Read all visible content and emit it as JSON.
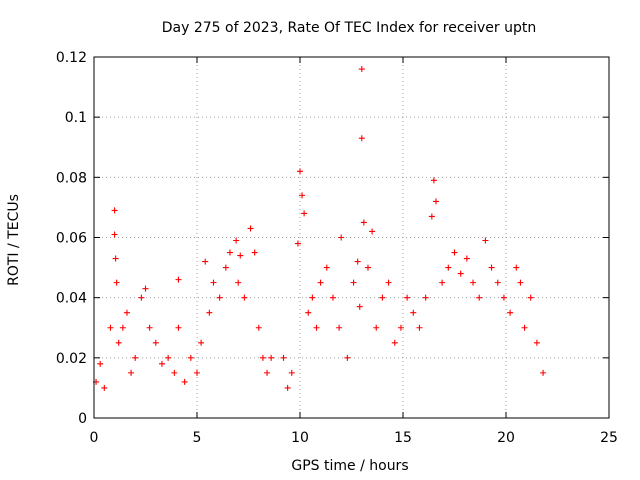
{
  "chart_data": {
    "type": "scatter",
    "title": "Day 275 of 2023, Rate Of TEC Index for receiver uptn",
    "xlabel": "GPS time / hours",
    "ylabel": "ROTI / TECUs",
    "xlim": [
      0,
      25
    ],
    "ylim": [
      0,
      0.12
    ],
    "xticks": [
      0,
      5,
      10,
      15,
      20,
      25
    ],
    "yticks": [
      0,
      0.02,
      0.04,
      0.06,
      0.08,
      0.1,
      0.12
    ],
    "xtick_labels": [
      "0",
      "5",
      "10",
      "15",
      "20",
      "25"
    ],
    "ytick_labels": [
      "0",
      "0.02",
      "0.04",
      "0.06",
      "0.08",
      "0.1",
      "0.12"
    ],
    "grid": true,
    "marker": "plus",
    "series": [
      {
        "color": "#ff0000",
        "x": [
          0.1,
          0.3,
          0.5,
          0.8,
          1.0,
          1.0,
          1.05,
          1.1,
          1.2,
          1.4,
          1.6,
          1.8,
          2.0,
          2.3,
          2.5,
          2.7,
          3.0,
          3.3,
          3.6,
          3.9,
          4.1,
          4.1,
          4.4,
          4.7,
          5.0,
          5.2,
          5.4,
          5.6,
          5.8,
          6.1,
          6.4,
          6.6,
          6.9,
          7.0,
          7.1,
          7.3,
          7.6,
          7.8,
          8.0,
          8.2,
          8.4,
          8.6,
          9.2,
          9.4,
          9.6,
          9.9,
          10.0,
          10.1,
          10.2,
          10.4,
          10.6,
          10.8,
          11.0,
          11.3,
          11.6,
          11.9,
          12.0,
          12.3,
          12.6,
          12.8,
          12.9,
          13.0,
          13.0,
          13.1,
          13.3,
          13.5,
          13.7,
          14.0,
          14.3,
          14.6,
          14.9,
          15.2,
          15.5,
          15.8,
          16.1,
          16.4,
          16.5,
          16.6,
          16.9,
          17.2,
          17.5,
          17.8,
          18.1,
          18.4,
          18.7,
          19.0,
          19.3,
          19.6,
          19.9,
          20.2,
          20.5,
          20.7,
          20.9,
          21.2,
          21.5,
          21.8
        ],
        "y": [
          0.012,
          0.018,
          0.01,
          0.03,
          0.069,
          0.061,
          0.053,
          0.045,
          0.025,
          0.03,
          0.035,
          0.015,
          0.02,
          0.04,
          0.043,
          0.03,
          0.025,
          0.018,
          0.02,
          0.015,
          0.046,
          0.03,
          0.012,
          0.02,
          0.015,
          0.025,
          0.052,
          0.035,
          0.045,
          0.04,
          0.05,
          0.055,
          0.059,
          0.045,
          0.054,
          0.04,
          0.063,
          0.055,
          0.03,
          0.02,
          0.015,
          0.02,
          0.02,
          0.01,
          0.015,
          0.058,
          0.082,
          0.074,
          0.068,
          0.035,
          0.04,
          0.03,
          0.045,
          0.05,
          0.04,
          0.03,
          0.06,
          0.02,
          0.045,
          0.052,
          0.037,
          0.116,
          0.093,
          0.065,
          0.05,
          0.062,
          0.03,
          0.04,
          0.045,
          0.025,
          0.03,
          0.04,
          0.035,
          0.03,
          0.04,
          0.067,
          0.079,
          0.072,
          0.045,
          0.05,
          0.055,
          0.048,
          0.053,
          0.045,
          0.04,
          0.059,
          0.05,
          0.045,
          0.04,
          0.035,
          0.05,
          0.045,
          0.03,
          0.04,
          0.025,
          0.015
        ]
      }
    ]
  }
}
